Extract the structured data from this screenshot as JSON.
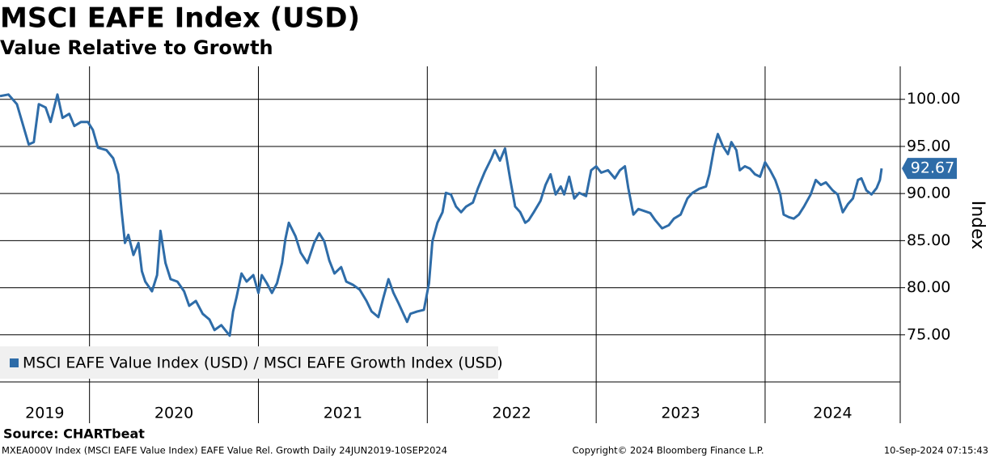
{
  "chart_data": {
    "type": "line",
    "title": "MSCI EAFE Index (USD)",
    "subtitle": "Value Relative to Growth",
    "y_label": "Index",
    "source": "Source: CHARTbeat",
    "footer_left": "MXEA000V Index (MSCI EAFE Value Index) EAFE Value Rel. Growth  Daily 24JUN2019-10SEP2024",
    "footer_center": "Copyright© 2024 Bloomberg Finance L.P.",
    "footer_right": "10-Sep-2024 07:15:43",
    "xlim": [
      2019.47,
      2024.8
    ],
    "xticks": [
      2019,
      2020,
      2021,
      2022,
      2023,
      2024
    ],
    "ylim": [
      70,
      103.5
    ],
    "yticks": [
      {
        "value": 75,
        "label": "75.00"
      },
      {
        "value": 80,
        "label": "80.00"
      },
      {
        "value": 85,
        "label": "85.00"
      },
      {
        "value": 90,
        "label": "90.00"
      },
      {
        "value": 95,
        "label": "95.00"
      },
      {
        "value": 100,
        "label": "100.00"
      }
    ],
    "grid": true,
    "legend": "bottom-left",
    "x": [
      2019.47,
      2019.52,
      2019.57,
      2019.64,
      2019.67,
      2019.7,
      2019.74,
      2019.77,
      2019.81,
      2019.84,
      2019.88,
      2019.91,
      2019.95,
      2019.99,
      2020.02,
      2020.05,
      2020.1,
      2020.14,
      2020.17,
      2020.19,
      2020.21,
      2020.23,
      2020.26,
      2020.29,
      2020.31,
      2020.33,
      2020.37,
      2020.4,
      2020.42,
      2020.45,
      2020.48,
      2020.52,
      2020.56,
      2020.59,
      2020.63,
      2020.67,
      2020.71,
      2020.74,
      2020.78,
      2020.83,
      2020.85,
      2020.87,
      2020.9,
      2020.93,
      2020.97,
      2021.0,
      2021.02,
      2021.05,
      2021.08,
      2021.11,
      2021.14,
      2021.16,
      2021.18,
      2021.22,
      2021.25,
      2021.29,
      2021.33,
      2021.36,
      2021.39,
      2021.42,
      2021.45,
      2021.49,
      2021.52,
      2021.56,
      2021.6,
      2021.64,
      2021.67,
      2021.71,
      2021.74,
      2021.77,
      2021.8,
      2021.83,
      2021.88,
      2021.9,
      2021.94,
      2021.98,
      2022.01,
      2022.03,
      2022.06,
      2022.09,
      2022.11,
      2022.14,
      2022.17,
      2022.2,
      2022.23,
      2022.27,
      2022.3,
      2022.34,
      2022.38,
      2022.4,
      2022.43,
      2022.46,
      2022.49,
      2022.52,
      2022.55,
      2022.58,
      2022.6,
      2022.63,
      2022.67,
      2022.7,
      2022.73,
      2022.76,
      2022.79,
      2022.81,
      2022.84,
      2022.87,
      2022.9,
      2022.94,
      2022.97,
      2023.0,
      2023.03,
      2023.07,
      2023.11,
      2023.14,
      2023.17,
      2023.19,
      2023.22,
      2023.25,
      2023.28,
      2023.32,
      2023.35,
      2023.39,
      2023.43,
      2023.46,
      2023.5,
      2023.54,
      2023.57,
      2023.61,
      2023.65,
      2023.67,
      2023.7,
      2023.72,
      2023.75,
      2023.78,
      2023.8,
      2023.83,
      2023.85,
      2023.88,
      2023.91,
      2023.94,
      2023.97,
      2024.0,
      2024.03,
      2024.06,
      2024.09,
      2024.11,
      2024.14,
      2024.17,
      2024.2,
      2024.23,
      2024.27,
      2024.3,
      2024.33,
      2024.36,
      2024.4,
      2024.43,
      2024.46,
      2024.49,
      2024.52,
      2024.55,
      2024.57,
      2024.6,
      2024.63,
      2024.66,
      2024.68,
      2024.69
    ],
    "series": [
      {
        "name": "MSCI EAFE Value Index (USD) / MSCI EAFE Growth Index (USD)",
        "color": "#2e6ca8",
        "values": [
          100.34,
          100.51,
          99.49,
          95.21,
          95.46,
          99.49,
          99.14,
          97.6,
          100.51,
          98.03,
          98.46,
          97.17,
          97.6,
          97.6,
          96.75,
          94.86,
          94.61,
          93.75,
          92.04,
          88.18,
          84.76,
          85.62,
          83.48,
          84.76,
          81.76,
          80.65,
          79.62,
          81.34,
          86.04,
          82.62,
          80.91,
          80.65,
          79.62,
          78.08,
          78.6,
          77.23,
          76.63,
          75.51,
          76.03,
          74.91,
          77.48,
          78.94,
          81.51,
          80.65,
          81.34,
          79.45,
          81.34,
          80.48,
          79.45,
          80.48,
          82.62,
          85.19,
          86.9,
          85.45,
          83.73,
          82.62,
          84.76,
          85.79,
          84.93,
          82.88,
          81.51,
          82.19,
          80.65,
          80.31,
          79.79,
          78.6,
          77.48,
          76.88,
          78.94,
          80.91,
          79.45,
          78.34,
          76.37,
          77.23,
          77.48,
          77.65,
          80.48,
          84.93,
          86.9,
          88.01,
          90.07,
          89.9,
          88.61,
          88.01,
          88.61,
          89.04,
          90.58,
          92.29,
          93.75,
          94.61,
          93.49,
          94.78,
          91.61,
          88.61,
          88.01,
          86.9,
          87.16,
          88.01,
          89.21,
          90.92,
          92.04,
          89.9,
          90.75,
          89.9,
          91.78,
          89.47,
          90.07,
          89.73,
          92.47,
          92.89,
          92.21,
          92.47,
          91.61,
          92.47,
          92.89,
          90.58,
          87.76,
          88.36,
          88.18,
          87.93,
          87.16,
          86.3,
          86.64,
          87.33,
          87.76,
          89.47,
          90.07,
          90.5,
          90.75,
          92.04,
          95.03,
          96.32,
          95.03,
          94.18,
          95.46,
          94.61,
          92.47,
          92.89,
          92.64,
          92.04,
          91.78,
          93.32,
          92.47,
          91.44,
          89.9,
          87.76,
          87.5,
          87.33,
          87.76,
          88.61,
          89.9,
          91.44,
          90.92,
          91.18,
          90.33,
          89.9,
          88.01,
          88.87,
          89.47,
          91.44,
          91.61,
          90.33,
          89.9,
          90.58,
          91.44,
          92.67
        ]
      }
    ]
  }
}
